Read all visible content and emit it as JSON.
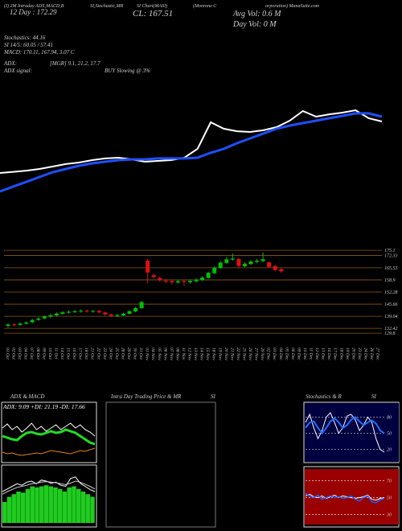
{
  "texts": [
    "(I) 2M Intraday ADX,MACD,B",
    "SI,Stochastic,MR",
    "SI Chart(MASI)",
    "(Monrone C",
    "orporation) ManaSuite.com",
    "12 Day : 172.29",
    "CL: 167.51",
    "Avg Vol: 0.6  M",
    "Day Vol: 0  M",
    "Stochastics: 44.16",
    "SI 14/5: 60.05 / 57.41",
    "MACD: 170.11, 167.94, 3.07 C",
    "ADX:",
    "[MGR] 9.1, 21.2, 17.7",
    "ADX  signal:",
    "BUY Slowing @ 3%",
    "ADX  & MACD",
    "Intra  Day Trading Price  & MR",
    "SI",
    "Stochastics & R",
    "SI",
    "ADX: 9.09  +DI: 21.19  -DI: 17.66"
  ],
  "chart_data": [
    {
      "type": "line",
      "ylim": [
        0,
        100
      ],
      "series": [
        {
          "color": "#ffffff",
          "values": [
            25,
            26,
            27.1,
            28.6,
            30.7,
            32.9,
            34.3,
            36.4,
            37.9,
            38.6,
            37.1,
            35,
            35.7,
            36.4,
            38.6,
            46.4,
            70,
            64.3,
            62.1,
            61.4,
            62.9,
            65.7,
            71.4,
            80,
            75,
            77.1,
            78.6,
            80.7,
            73.6,
            70.7
          ]
        },
        {
          "color": "#1f4fff",
          "values": [
            8.6,
            12.9,
            17.1,
            21.4,
            25.7,
            28.6,
            31.4,
            33.6,
            35,
            36.4,
            37.1,
            37.1,
            37.9,
            37.9,
            37.9,
            38.6,
            42.9,
            46.4,
            51.4,
            55.7,
            60,
            64.3,
            67.1,
            69.3,
            71.4,
            73.6,
            75.7,
            77.9,
            77.9,
            75
          ]
        }
      ]
    },
    {
      "type": "candlestick",
      "up_color": "#00c000",
      "down_color": "#e01010",
      "grid": true,
      "grid_color": "#8a5a1a",
      "ylim": [
        125,
        180
      ],
      "yticks": [
        175.1,
        172.33,
        165.53,
        158.9,
        152.28,
        145.66,
        139.04,
        132.42,
        129.8
      ],
      "categories": [
        "01 Oct",
        "02 Oct",
        "03 Oct",
        "04 Oct",
        "07 Oct",
        "08 Oct",
        "09 Oct",
        "10 Oct",
        "11 Oct",
        "14 Oct",
        "15 Oct",
        "16 Oct",
        "17 Oct",
        "18 Oct",
        "21 Oct",
        "22 Oct",
        "23 Oct",
        "24 Oct",
        "25 Oct",
        "28 Oct",
        "29 Oct",
        "30 Oct",
        "31 Oct",
        "01 Nov",
        "04 Nov",
        "05 Nov",
        "06 Nov",
        "07 Nov",
        "08 Nov",
        "11 Nov",
        "12 Nov",
        "13 Nov",
        "14 Nov",
        "15 Nov",
        "18 Nov",
        "19 Nov",
        "20 Nov",
        "21 Nov",
        "22 Nov",
        "25 Nov",
        "26 Nov",
        "27 Nov",
        "29 Nov",
        "02 Dec",
        "03 Dec",
        "04 Dec",
        "05 Dec",
        "06 Dec",
        "09 Dec",
        "10 Dec",
        "11 Dec",
        "12 Dec",
        "13 Dec",
        "16 Dec",
        "17 Dec",
        "18 Dec",
        "19 Dec",
        "20 Dec",
        "23 Dec",
        "24 Dec",
        "26 Dec",
        "27 Dec"
      ],
      "open": [
        133.8,
        134.6,
        134.3,
        135.0,
        135.8,
        137.1,
        137.9,
        138.8,
        139.5,
        140.4,
        141.0,
        141.3,
        141.7,
        142.1,
        141.5,
        142.0,
        141.1,
        140.0,
        139.1,
        139.5,
        140.4,
        141.7,
        143.5,
        169.5,
        161.5,
        160.0,
        158.5,
        158.3,
        157.5,
        158.3,
        157.7,
        158.2,
        158.9,
        160.0,
        162.6,
        165.4,
        168.2,
        170.0,
        170.4,
        166.4,
        167.6,
        168.8,
        169.2,
        168.5,
        166.5,
        164.8,
        null,
        null,
        null,
        null,
        null,
        null,
        null,
        null,
        null,
        null,
        null,
        null,
        null,
        null,
        null,
        null
      ],
      "high": [
        135.2,
        135.3,
        135.7,
        136.3,
        137.6,
        138.5,
        139.4,
        140.3,
        141.1,
        141.9,
        142.2,
        142.5,
        142.8,
        142.7,
        142.6,
        142.4,
        141.6,
        140.5,
        140.3,
        141.0,
        142.3,
        144.0,
        147.5,
        170.3,
        162.3,
        160.8,
        159.6,
        158.9,
        159.0,
        158.8,
        159.2,
        159.8,
        161.0,
        163.4,
        166.3,
        169.2,
        171.4,
        173.3,
        171.0,
        168.6,
        169.8,
        170.5,
        173.9,
        169.1,
        167.0,
        165.3,
        null,
        null,
        null,
        null,
        null,
        null,
        null,
        null,
        null,
        null,
        null,
        null,
        null,
        null,
        null,
        null
      ],
      "low": [
        133.0,
        133.5,
        133.8,
        134.5,
        135.2,
        136.6,
        137.4,
        138.2,
        139.0,
        139.9,
        140.5,
        140.8,
        141.0,
        141.0,
        141.0,
        140.6,
        139.4,
        138.6,
        138.5,
        139.0,
        140.0,
        141.2,
        143.0,
        157.0,
        159.5,
        158.0,
        157.2,
        156.4,
        156.8,
        155.8,
        156.9,
        157.5,
        158.4,
        159.6,
        162.1,
        165.0,
        167.6,
        169.5,
        165.2,
        165.8,
        167.0,
        168.0,
        168.7,
        165.4,
        163.6,
        162.8,
        null,
        null,
        null,
        null,
        null,
        null,
        null,
        null,
        null,
        null,
        null,
        null,
        null,
        null,
        null,
        null
      ],
      "close": [
        134.5,
        134.2,
        135.0,
        135.6,
        137.0,
        137.8,
        138.9,
        139.6,
        140.5,
        141.2,
        141.5,
        141.8,
        142.0,
        141.6,
        141.9,
        141.2,
        140.0,
        139.2,
        139.6,
        140.5,
        141.8,
        143.5,
        146.8,
        163.0,
        160.5,
        158.8,
        158.0,
        157.6,
        158.2,
        157.8,
        158.4,
        159.0,
        160.2,
        162.8,
        165.6,
        168.4,
        170.2,
        170.6,
        166.5,
        167.8,
        169.0,
        169.4,
        170.2,
        166.0,
        164.3,
        163.6,
        null,
        null,
        null,
        null,
        null,
        null,
        null,
        null,
        null,
        null,
        null,
        null,
        null,
        null,
        null,
        null
      ]
    },
    {
      "type": "line",
      "ylim": [
        0,
        60
      ],
      "series": [
        {
          "color": "#ffffff",
          "values": [
            40,
            45,
            38,
            42,
            35,
            40,
            46,
            38,
            42,
            36,
            40,
            44,
            38,
            42,
            46,
            40,
            44,
            38,
            35,
            30
          ]
        },
        {
          "color": "#22dd22",
          "values": [
            30,
            28,
            26,
            25,
            30,
            34,
            35,
            33,
            32,
            34,
            36,
            34,
            35,
            38,
            36,
            34,
            30,
            26,
            22,
            20
          ]
        },
        {
          "color": "#e08020",
          "values": [
            10,
            8,
            9,
            7,
            6,
            7,
            8,
            9,
            8,
            10,
            12,
            11,
            10,
            9,
            8,
            10,
            12,
            11,
            13,
            15
          ]
        }
      ]
    },
    {
      "type": "bar",
      "color": "#1fcc1f",
      "ylim": [
        0,
        10
      ],
      "values": [
        4,
        5,
        5.5,
        6,
        5.8,
        6.5,
        7,
        6.8,
        7,
        7.2,
        7,
        6.8,
        6.5,
        6,
        6.8,
        7,
        6.5,
        6,
        5.5,
        5
      ],
      "series": [
        {
          "color": "#ffffff",
          "values": [
            6,
            6.5,
            7,
            7.5,
            7.2,
            7.8,
            8,
            7.5,
            8.2,
            8,
            7.6,
            7.8,
            7.2,
            7,
            8.5,
            8.8,
            7.6,
            7,
            6.4,
            6
          ]
        },
        {
          "color": "#cccccc",
          "values": [
            5.5,
            6,
            6.4,
            6.8,
            7,
            7.2,
            7.5,
            7.6,
            7.8,
            7.9,
            7.8,
            7.7,
            7.5,
            7.3,
            7.6,
            8,
            7.8,
            7.4,
            7,
            6.5
          ]
        }
      ]
    },
    {
      "type": "line",
      "background": "#000040",
      "grid": true,
      "grid_color": "#aaaaaa",
      "ylim": [
        0,
        100
      ],
      "yticks": [
        80,
        50,
        20
      ],
      "series": [
        {
          "color": "#ffffff",
          "values": [
            70,
            85,
            60,
            40,
            55,
            80,
            88,
            70,
            50,
            60,
            82,
            85,
            75,
            55,
            65,
            80,
            70,
            40,
            20,
            15
          ]
        },
        {
          "color": "#2070ff",
          "values": [
            60,
            70,
            72,
            60,
            50,
            60,
            72,
            78,
            70,
            60,
            65,
            75,
            80,
            72,
            65,
            70,
            74,
            68,
            55,
            50
          ]
        }
      ]
    },
    {
      "type": "line",
      "background": "#9a0000",
      "grid": true,
      "grid_color": "#dddddd",
      "ylim": [
        20,
        80
      ],
      "yticks": [
        70,
        50,
        30
      ],
      "series": [
        {
          "color": "#ffffff",
          "values": [
            52,
            54,
            51,
            50,
            52,
            49,
            51,
            53,
            50,
            52,
            51,
            50,
            49,
            50,
            51,
            53,
            48,
            47,
            49,
            50
          ]
        },
        {
          "color": "#2060ff",
          "values": [
            55,
            52,
            50,
            53,
            48,
            50,
            52,
            50,
            51,
            49,
            50,
            52,
            48,
            46,
            50,
            52,
            45,
            44,
            47,
            49
          ]
        }
      ]
    }
  ]
}
